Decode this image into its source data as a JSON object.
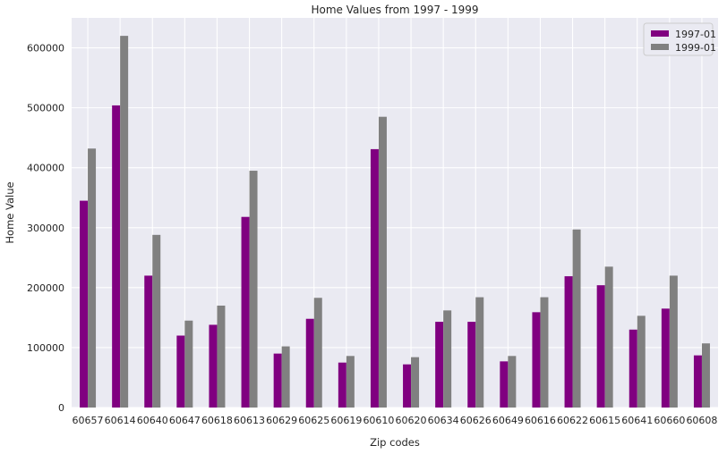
{
  "chart_data": {
    "type": "bar",
    "title": "Home Values from 1997 - 1999",
    "xlabel": "Zip codes",
    "ylabel": "Home Value",
    "categories": [
      "60657",
      "60614",
      "60640",
      "60647",
      "60618",
      "60613",
      "60629",
      "60625",
      "60619",
      "60610",
      "60620",
      "60634",
      "60626",
      "60649",
      "60616",
      "60622",
      "60615",
      "60641",
      "60660",
      "60608"
    ],
    "series": [
      {
        "name": "1997-01",
        "color": "#800080",
        "values": [
          345000,
          504000,
          220000,
          120000,
          138000,
          318000,
          90000,
          148000,
          75000,
          431000,
          72000,
          143000,
          143000,
          77000,
          159000,
          219000,
          204000,
          130000,
          165000,
          87000
        ]
      },
      {
        "name": "1999-01",
        "color": "#808080",
        "values": [
          432000,
          620000,
          288000,
          145000,
          170000,
          395000,
          102000,
          183000,
          86000,
          485000,
          84000,
          162000,
          184000,
          86000,
          184000,
          297000,
          235000,
          153000,
          220000,
          107000
        ]
      }
    ],
    "ylim": [
      0,
      650000
    ],
    "yticks": [
      "0",
      "100000",
      "200000",
      "300000",
      "400000",
      "500000",
      "600000"
    ],
    "grid": true,
    "legend_position": "top-right",
    "background_color": "#eaeaf2"
  }
}
